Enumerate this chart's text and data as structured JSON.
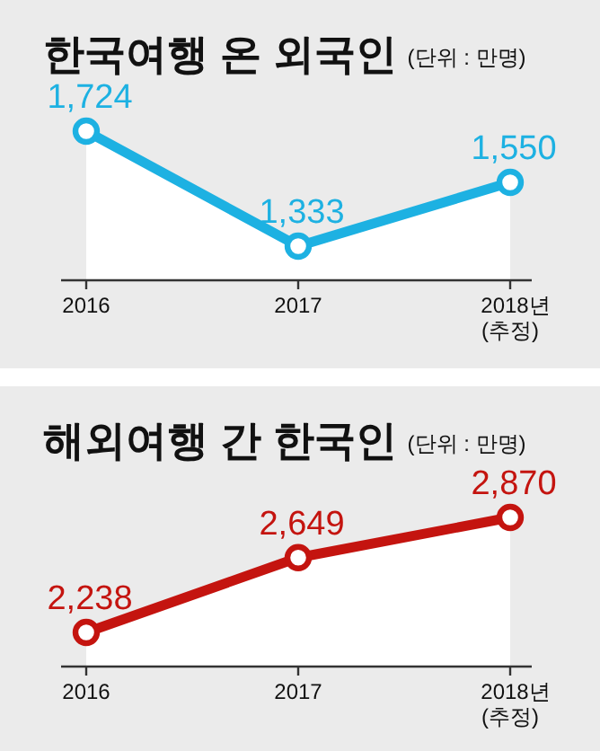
{
  "chart_data": [
    {
      "type": "area",
      "title": "한국여행 온 외국인",
      "subtitle": "(단위 : 만명)",
      "categories": [
        "2016",
        "2017",
        "2018년 (추정)"
      ],
      "values": [
        1724,
        1333,
        1550
      ],
      "value_labels": [
        "1,724",
        "1,333",
        "1,550"
      ],
      "color": "#1db1e2",
      "marker": "circle"
    },
    {
      "type": "area",
      "title": "해외여행 간 한국인",
      "subtitle": "(단위 : 만명)",
      "categories": [
        "2016",
        "2017",
        "2018년 (추정)"
      ],
      "values": [
        2238,
        2649,
        2870
      ],
      "value_labels": [
        "2,238",
        "2,649",
        "2,870"
      ],
      "color": "#c4140f",
      "marker": "circle"
    }
  ]
}
